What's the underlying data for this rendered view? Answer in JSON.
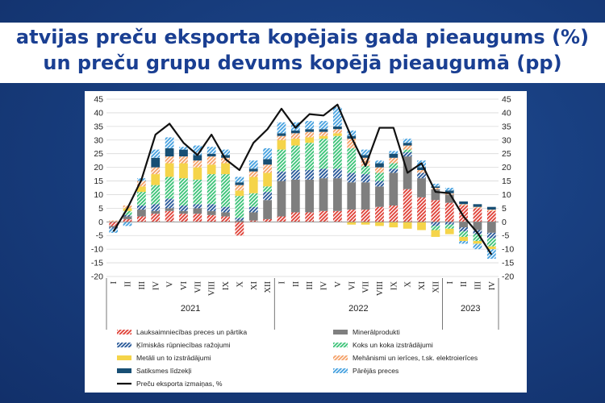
{
  "title": {
    "line1": "atvijas preču eksporta kopējais gada pieaugums (%)",
    "line2": "un preču grupu devums kopējā pieaugumā (pp)"
  },
  "chart_data": {
    "type": "bar",
    "subtype": "stacked-bar-with-line",
    "ylim": [
      -20,
      45
    ],
    "yticks": [
      "45",
      "40",
      "35",
      "30",
      "25",
      "20",
      "15",
      "10",
      "5",
      "0",
      "-5",
      "-10",
      "-15",
      "-20"
    ],
    "secondary_yticks": [
      "45",
      "40",
      "35",
      "30",
      "25",
      "20",
      "15",
      "10",
      "5",
      "0",
      "-5",
      "-10",
      "-15",
      "-20"
    ],
    "grid": true,
    "categories": [
      "I",
      "II",
      "III",
      "IV",
      "V",
      "VI",
      "VII",
      "VIII",
      "IX",
      "X",
      "XI",
      "XII",
      "I",
      "II",
      "III",
      "IV",
      "V",
      "VI",
      "VII",
      "VIII",
      "IX",
      "X",
      "XI",
      "XII",
      "I",
      "II",
      "III",
      "IV"
    ],
    "year_groups": [
      {
        "label": "2021",
        "start": 0,
        "count": 12
      },
      {
        "label": "2022",
        "start": 12,
        "count": 12
      },
      {
        "label": "2023",
        "start": 24,
        "count": 4
      }
    ],
    "series": [
      {
        "name": "Lauksaimniecības preces un pārtika",
        "color": "#e0443a",
        "pattern": "diag",
        "values": [
          -1.5,
          1,
          2,
          3,
          4,
          3,
          3,
          2.5,
          2,
          -5,
          0.5,
          1,
          2,
          3.5,
          3.5,
          4,
          4,
          4.5,
          4.5,
          5.5,
          6,
          12,
          9,
          8,
          7,
          6,
          5,
          4
        ]
      },
      {
        "name": "Minerālprodukti",
        "color": "#7f7f7f",
        "pattern": "solid",
        "values": [
          -0.5,
          1,
          2.5,
          1,
          1,
          1,
          2,
          1.5,
          1.5,
          0.5,
          3,
          7,
          13,
          12,
          12,
          12,
          12,
          10,
          10,
          7.5,
          12,
          12,
          7,
          4,
          3,
          -2,
          -3,
          -4
        ]
      },
      {
        "name": "Ķīmiskās rūpniecības ražojumi",
        "color": "#2a5a9a",
        "pattern": "diag",
        "values": [
          -0.5,
          0.5,
          1.5,
          2.5,
          3.5,
          2,
          1.5,
          2.5,
          2,
          1,
          2,
          3,
          3.5,
          3.5,
          3.5,
          3.5,
          3.5,
          3.5,
          3,
          2,
          1.5,
          1.5,
          2,
          -1.5,
          -1,
          -1.5,
          -1.5,
          -2
        ]
      },
      {
        "name": "Koks un koka izstrādājumi",
        "color": "#3fc47a",
        "pattern": "diag",
        "values": [
          0,
          1.5,
          5,
          7,
          8,
          10,
          9,
          11,
          12,
          8,
          5,
          2,
          8,
          9,
          10,
          11,
          12,
          9,
          3,
          3,
          2,
          1,
          0,
          -1.5,
          -1.5,
          -2,
          -2.5,
          -3
        ]
      },
      {
        "name": "Metāli un to izstrādājumi",
        "color": "#f5d44a",
        "pattern": "solid",
        "values": [
          0,
          1,
          2,
          4,
          5,
          5.5,
          4.5,
          3.5,
          4,
          2,
          6,
          5,
          3.5,
          2.5,
          2,
          1,
          1,
          -1,
          -1,
          -1.5,
          -2,
          -2.5,
          -3,
          -2.5,
          -2,
          -1.5,
          -1,
          -1
        ]
      },
      {
        "name": "Mehānismi un ierīces, t.sk. elektroierīces",
        "color": "#f5a36b",
        "pattern": "diag",
        "values": [
          0.5,
          1,
          2,
          2.5,
          2.5,
          2.5,
          2.5,
          3,
          2,
          2,
          2,
          3,
          1.5,
          2,
          2,
          1.5,
          1.5,
          3.5,
          3,
          2,
          2,
          1.5,
          1,
          0.5,
          0.5,
          0.5,
          0.5,
          0.5
        ]
      },
      {
        "name": "Satiksmes līdzekļi",
        "color": "#184f74",
        "pattern": "solid",
        "values": [
          0,
          0,
          0,
          3.5,
          3,
          2.5,
          2,
          1,
          1,
          1,
          1,
          2,
          1,
          1,
          1,
          1,
          1,
          1,
          1,
          1.5,
          1.5,
          1,
          1,
          0.5,
          1,
          1,
          1,
          1
        ]
      },
      {
        "name": "Pārējās preces",
        "color": "#4aa3e0",
        "pattern": "diag",
        "values": [
          -1.5,
          -1.5,
          1,
          3,
          4,
          1,
          3.5,
          2.5,
          2,
          2,
          3,
          4,
          4,
          3,
          3,
          3,
          7,
          2,
          2,
          1,
          1,
          1.5,
          2.5,
          1,
          1,
          -1,
          -2,
          -3.5
        ]
      }
    ],
    "line": {
      "name": "Preču eksporta izmaiņas, %",
      "color": "#111111",
      "values": [
        -3.5,
        5,
        15.5,
        32,
        36,
        29,
        24.5,
        32,
        23,
        19,
        29,
        34,
        41.5,
        34.5,
        39.5,
        39,
        43,
        31,
        20.5,
        34.5,
        34.5,
        18,
        21.5,
        11,
        10.5,
        2,
        -4,
        -12
      ]
    },
    "legend_position": "bottom",
    "legend_order": [
      0,
      1,
      2,
      3,
      4,
      5,
      6,
      7
    ]
  }
}
